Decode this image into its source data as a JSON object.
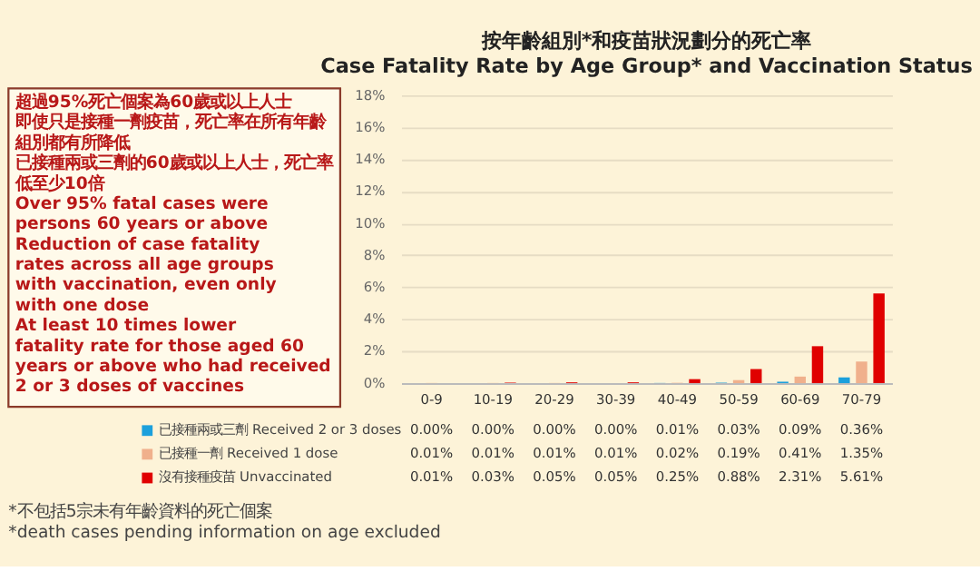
{
  "chart_data": {
    "type": "bar",
    "title": "按年齡組別*和疫苗狀況劃分的死亡率",
    "subtitle": "Case Fatality Rate by Age Group* and Vaccination Status",
    "categories": [
      "0-9",
      "10-19",
      "20-29",
      "30-39",
      "40-49",
      "50-59",
      "60-69",
      "70-79"
    ],
    "series": [
      {
        "name": "已接種兩或三劑 Received 2 or 3 doses",
        "color": "#1ca0dc",
        "values": [
          0.0,
          0.0,
          0.0,
          0.0,
          0.01,
          0.03,
          0.09,
          0.36
        ],
        "value_labels": [
          "0.00%",
          "0.00%",
          "0.00%",
          "0.00%",
          "0.01%",
          "0.03%",
          "0.09%",
          "0.36%"
        ]
      },
      {
        "name": "已接種一劑 Received 1 dose",
        "color": "#f0b08c",
        "values": [
          0.01,
          0.01,
          0.01,
          0.01,
          0.02,
          0.19,
          0.41,
          1.35
        ],
        "value_labels": [
          "0.01%",
          "0.01%",
          "0.01%",
          "0.01%",
          "0.02%",
          "0.19%",
          "0.41%",
          "1.35%"
        ]
      },
      {
        "name": "沒有接種疫苗 Unvaccinated",
        "color": "#e00000",
        "values": [
          0.01,
          0.03,
          0.05,
          0.05,
          0.25,
          0.88,
          2.31,
          5.61
        ],
        "value_labels": [
          "0.01%",
          "0.03%",
          "0.05%",
          "0.05%",
          "0.25%",
          "0.88%",
          "2.31%",
          "5.61%"
        ]
      }
    ],
    "ylim": [
      0,
      18
    ],
    "yticks": [
      {
        "value": 0,
        "label": "0%"
      },
      {
        "value": 2,
        "label": "2%"
      },
      {
        "value": 4,
        "label": "4%"
      },
      {
        "value": 6,
        "label": "6%"
      },
      {
        "value": 8,
        "label": "8%"
      },
      {
        "value": 10,
        "label": "10%"
      },
      {
        "value": 12,
        "label": "12%"
      },
      {
        "value": 14,
        "label": "14%"
      },
      {
        "value": 16,
        "label": "16%"
      },
      {
        "value": 18,
        "label": "18%"
      }
    ],
    "grid": "y",
    "legend": "bottom",
    "annotations": [
      "超過95%死亡個案為60歲或以上人士",
      "即使只是接種一劑疫苗，死亡率在所有年齡組別都有所降低",
      "已接種兩或三劑的60歲或以上人士，死亡率低至少10倍",
      "Over 95% fatal cases were persons 60 years or above",
      "Reduction of case fatality rates across all age groups with vaccination, even only with one dose",
      "At least 10 times lower fatality rate for those aged 60 years or above who had received 2 or 3 doses of vaccines",
      "*不包括5宗未有年齡資料的死亡個案",
      "*death cases pending information on age excluded"
    ]
  }
}
